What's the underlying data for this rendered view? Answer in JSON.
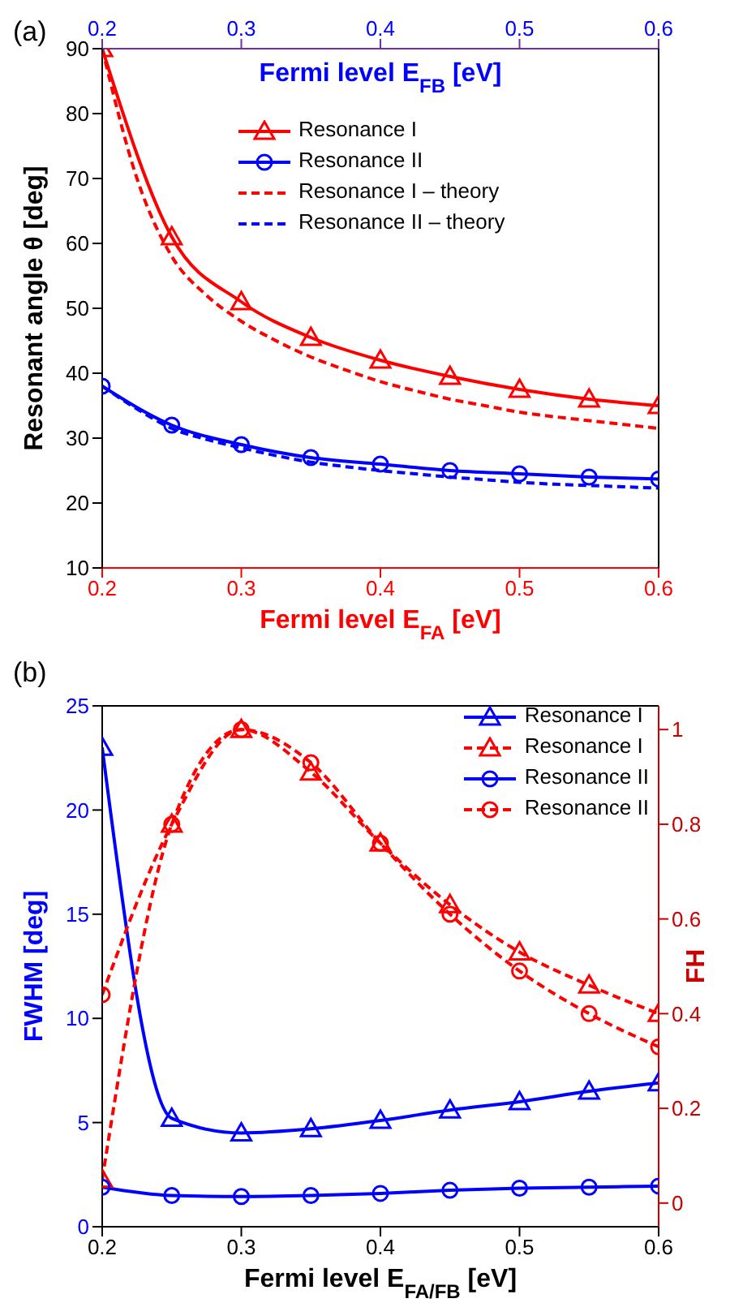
{
  "chart_data": [
    {
      "type": "line",
      "xlabel": "Fermi level E$_{FA}$ [eV]",
      "x2label": "Fermi level E$_{FB}$ [eV]",
      "ylabel": "Resonant angle θ [deg]",
      "x": [
        0.2,
        0.25,
        0.3,
        0.35,
        0.4,
        0.45,
        0.5,
        0.55,
        0.6
      ],
      "xlim": [
        0.2,
        0.6
      ],
      "xticks": [
        0.2,
        0.3,
        0.4,
        0.5,
        0.6
      ],
      "x2lim": [
        0.2,
        0.6
      ],
      "x2ticks": [
        0.2,
        0.3,
        0.4,
        0.5,
        0.6
      ],
      "ylim": [
        10,
        90
      ],
      "yticks": [
        10,
        20,
        30,
        40,
        50,
        60,
        70,
        80,
        90
      ],
      "grid": false,
      "legend": "top",
      "annotations": [
        "(a)"
      ],
      "series": [
        {
          "name": "Resonance I",
          "color": "#ff0000",
          "marker": "triangle",
          "line_style": "solid",
          "values": [
            90,
            61,
            51,
            45.5,
            42,
            39.5,
            37.5,
            36,
            35
          ]
        },
        {
          "name": "Resonance II",
          "color": "#0000ff",
          "marker": "circle",
          "line_style": "solid",
          "values": [
            38,
            32,
            29,
            27,
            26,
            25,
            24.5,
            24,
            23.7
          ]
        },
        {
          "name": "Resonance I – theory",
          "color": "#ff0000",
          "marker": "none",
          "line_style": "dashed",
          "x": [
            0.2,
            0.225,
            0.25,
            0.275,
            0.3,
            0.325,
            0.35,
            0.375,
            0.4,
            0.425,
            0.45,
            0.475,
            0.5,
            0.525,
            0.55,
            0.575,
            0.6
          ],
          "values": [
            90,
            70,
            58,
            52,
            48,
            45,
            42.5,
            40.5,
            38.7,
            37.3,
            36,
            35,
            34,
            33.3,
            32.7,
            32.1,
            31.5
          ]
        },
        {
          "name": "Resonance II – theory",
          "color": "#0000ff",
          "marker": "none",
          "line_style": "dashed",
          "x": [
            0.2,
            0.225,
            0.25,
            0.275,
            0.3,
            0.325,
            0.35,
            0.375,
            0.4,
            0.425,
            0.45,
            0.475,
            0.5,
            0.525,
            0.55,
            0.575,
            0.6
          ],
          "values": [
            38,
            34.5,
            31.5,
            29.8,
            28.5,
            27.3,
            26.3,
            25.6,
            25,
            24.5,
            24,
            23.6,
            23.2,
            22.9,
            22.7,
            22.5,
            22.3
          ]
        }
      ]
    },
    {
      "type": "line",
      "xlabel": "Fermi level E$_{FA/FB}$ [eV]",
      "ylabel": "FWHM [deg]",
      "y2label": "FH",
      "x": [
        0.2,
        0.25,
        0.3,
        0.35,
        0.4,
        0.45,
        0.5,
        0.55,
        0.6
      ],
      "xlim": [
        0.2,
        0.6
      ],
      "xticks": [
        0.2,
        0.3,
        0.4,
        0.5,
        0.6
      ],
      "ylim": [
        0,
        25
      ],
      "yticks": [
        0,
        5,
        10,
        15,
        20,
        25
      ],
      "y2lim": [
        -0.05,
        1.05
      ],
      "y2ticks": [
        0,
        0.2,
        0.4,
        0.6,
        0.8,
        1
      ],
      "grid": false,
      "legend": "top right",
      "annotations": [
        "(b)"
      ],
      "series": [
        {
          "name": "Resonance I",
          "color": "#0000ff",
          "marker": "triangle",
          "line_style": "solid",
          "values": [
            23,
            5.2,
            4.5,
            4.7,
            5.1,
            5.6,
            6.0,
            6.5,
            6.9
          ]
        },
        {
          "name": "Resonance I",
          "color": "#ff0000",
          "marker": "triangle",
          "line_style": "dashed",
          "axis": "y2",
          "values": [
            0.05,
            0.8,
            1.0,
            0.91,
            0.76,
            0.63,
            0.53,
            0.46,
            0.4
          ]
        },
        {
          "name": "Resonance II",
          "color": "#0000ff",
          "marker": "circle",
          "line_style": "solid",
          "values": [
            1.9,
            1.5,
            1.45,
            1.5,
            1.6,
            1.75,
            1.85,
            1.9,
            1.95
          ]
        },
        {
          "name": "Resonance II",
          "color": "#ff0000",
          "marker": "circle",
          "line_style": "dashed",
          "axis": "y2",
          "values": [
            0.44,
            0.8,
            1.0,
            0.93,
            0.76,
            0.61,
            0.49,
            0.4,
            0.33
          ]
        }
      ]
    }
  ]
}
